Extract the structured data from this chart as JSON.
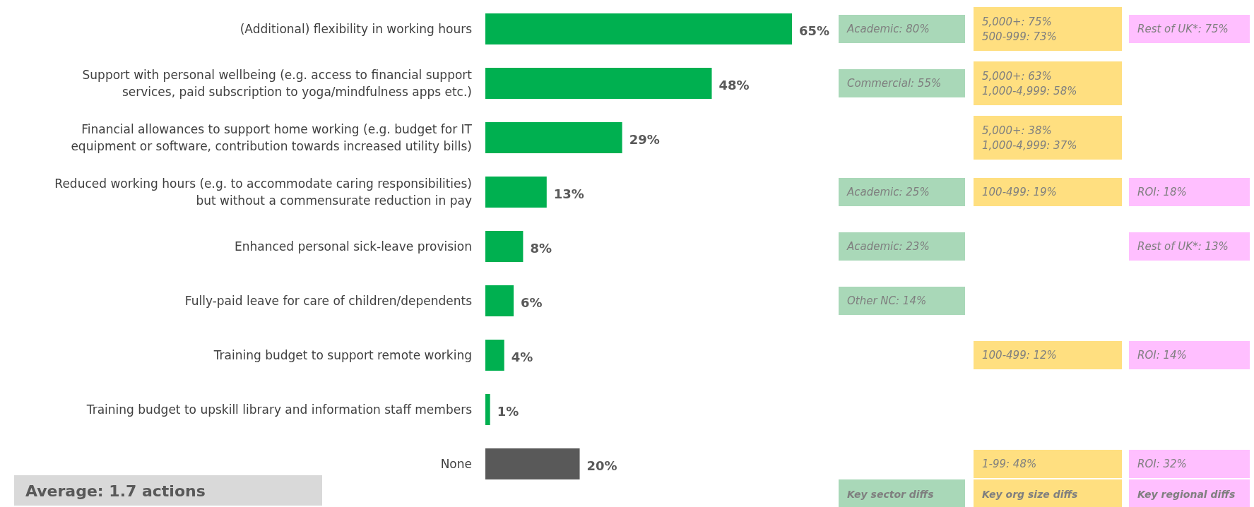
{
  "chart_data": [
    {
      "type": "bar",
      "orientation": "horizontal",
      "categories": [
        "(Additional) flexibility in working hours",
        "Support with personal wellbeing (e.g. access to financial support services, paid subscription to yoga/mindfulness apps etc.)",
        "Financial allowances to support home working (e.g. budget for IT equipment or software, contribution towards increased utility bills)",
        "Reduced working hours (e.g. to accommodate caring responsibilities) but without a commensurate reduction in pay",
        "Enhanced personal sick-leave provision",
        "Fully-paid leave for care of children/dependents",
        "Training budget to support remote working",
        "Training budget to upskill library and information staff members",
        "None"
      ],
      "values": [
        65,
        48,
        29,
        13,
        8,
        6,
        4,
        1,
        20
      ],
      "colors": [
        "#00b050",
        "#00b050",
        "#00b050",
        "#00b050",
        "#00b050",
        "#00b050",
        "#00b050",
        "#00b050",
        "#595959"
      ],
      "value_labels": [
        "65%",
        "48%",
        "29%",
        "13%",
        "8%",
        "6%",
        "4%",
        "1%",
        "20%"
      ],
      "annotations": [
        "Average: 1.7 actions"
      ]
    },
    {
      "type": "other",
      "categories": [
        "Key sector diffs",
        "Key org size diffs",
        "Key regional diffs"
      ],
      "colors": [
        "#a9d8b8",
        "#ffdf80",
        "#ffbfff"
      ],
      "annotations": [
        {
          "text": "Academic: 80%",
          "x": "Key sector diffs",
          "y": "(Additional) flexibility in working hours"
        },
        {
          "text": "5,000+: 75%\n500-999: 73%",
          "x": "Key org size diffs",
          "y": "(Additional) flexibility in working hours"
        },
        {
          "text": "Rest of UK*: 75%",
          "x": "Key regional diffs",
          "y": "(Additional) flexibility in working hours"
        },
        {
          "text": "Commercial: 55%",
          "x": "Key sector diffs",
          "y": "Support with personal wellbeing (e.g. access to financial support services, paid subscription to yoga/mindfulness apps etc.)"
        },
        {
          "text": "5,000+: 63%\n1,000-4,999: 58%",
          "x": "Key org size diffs",
          "y": "Support with personal wellbeing (e.g. access to financial support services, paid subscription to yoga/mindfulness apps etc.)"
        },
        {
          "text": "5,000+: 38%\n1,000-4,999: 37%",
          "x": "Key org size diffs",
          "y": "Financial allowances to support home working (e.g. budget for IT equipment or software, contribution towards increased utility bills)"
        },
        {
          "text": "Academic: 25%",
          "x": "Key sector diffs",
          "y": "Reduced working hours (e.g. to accommodate caring responsibilities) but without a commensurate reduction in pay"
        },
        {
          "text": "100-499: 19%",
          "x": "Key org size diffs",
          "y": "Reduced working hours (e.g. to accommodate caring responsibilities) but without a commensurate reduction in pay"
        },
        {
          "text": "ROI: 18%",
          "x": "Key regional diffs",
          "y": "Reduced working hours (e.g. to accommodate caring responsibilities) but without a commensurate reduction in pay"
        },
        {
          "text": "Academic: 23%",
          "x": "Key sector diffs",
          "y": "Enhanced personal sick-leave provision"
        },
        {
          "text": "Rest of UK*: 13%",
          "x": "Key regional diffs",
          "y": "Enhanced personal sick-leave provision"
        },
        {
          "text": "Other NC: 14%",
          "x": "Key sector diffs",
          "y": "Fully-paid leave for care of children/dependents"
        },
        {
          "text": "100-499: 12%",
          "x": "Key org size diffs",
          "y": "Training budget to support remote working"
        },
        {
          "text": "ROI: 14%",
          "x": "Key regional diffs",
          "y": "Training budget to support remote working"
        },
        {
          "text": "1-99: 48%",
          "x": "Key org size diffs",
          "y": "None"
        },
        {
          "text": "ROI: 32%",
          "x": "Key regional diffs",
          "y": "None"
        }
      ]
    }
  ]
}
